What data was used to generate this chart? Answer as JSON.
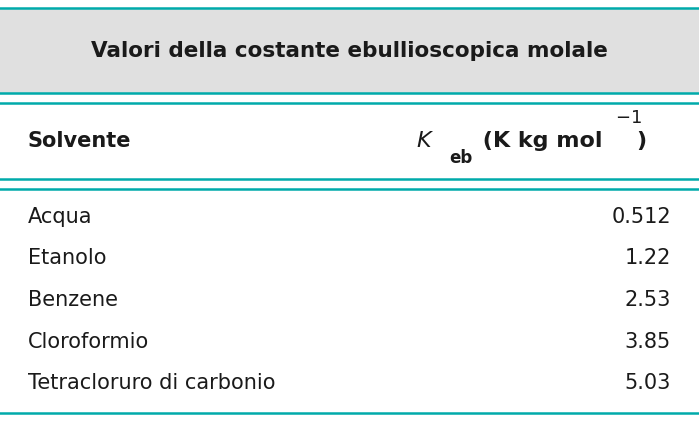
{
  "title": "Valori della costante ebullioscopica molale",
  "title_fontsize": 15.5,
  "col1_header": "Solvente",
  "col2_header_italic": "K",
  "col2_header_sub": "eb",
  "col2_header_rest": " (K kg mol",
  "col2_header_sup": "−1",
  "col2_header_end": ")",
  "solvents": [
    "Acqua",
    "Etanolo",
    "Benzene",
    "Cloroformio",
    "Tetracloruro di carbonio"
  ],
  "values": [
    "0.512",
    "1.22",
    "2.53",
    "3.85",
    "5.03"
  ],
  "bg_color": "#ffffff",
  "title_bg_color": "#e8e8e8",
  "text_color": "#1a1a1a",
  "teal_color": "#00aaaa",
  "data_fontsize": 15,
  "header_fontsize": 15
}
